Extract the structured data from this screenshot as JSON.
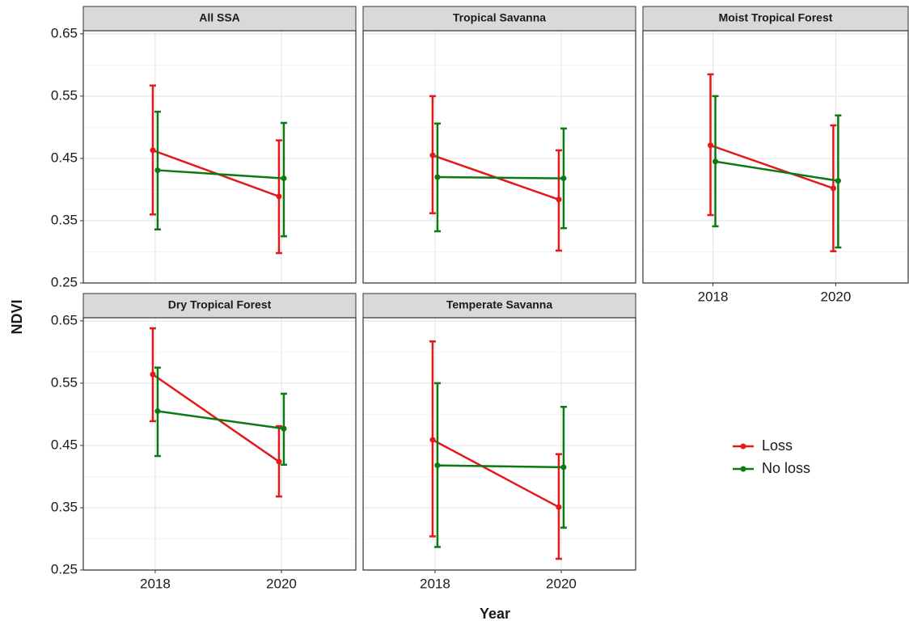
{
  "axis_labels": {
    "x": "Year",
    "y": "NDVI"
  },
  "chart_data": [
    {
      "type": "line",
      "title": "All SSA",
      "x": [
        2018,
        2020
      ],
      "xlim": [
        2016.86,
        2021.18
      ],
      "xticks": [
        2018,
        2020
      ],
      "ylim": [
        0.25,
        0.655
      ],
      "yticks": [
        0.25,
        0.35,
        0.45,
        0.55,
        0.65
      ],
      "minor_yticks": [
        0.3,
        0.4,
        0.5,
        0.6
      ],
      "grid": true,
      "series": [
        {
          "name": "Loss",
          "color": "#e31a1c",
          "values": [
            0.463,
            0.389
          ],
          "lower": [
            0.36,
            0.298
          ],
          "upper": [
            0.567,
            0.479
          ]
        },
        {
          "name": "No loss",
          "color": "#0b7a12",
          "values": [
            0.431,
            0.418
          ],
          "lower": [
            0.336,
            0.325
          ],
          "upper": [
            0.525,
            0.507
          ]
        }
      ]
    },
    {
      "type": "line",
      "title": "Tropical Savanna",
      "x": [
        2018,
        2020
      ],
      "xlim": [
        2016.86,
        2021.18
      ],
      "xticks": [
        2018,
        2020
      ],
      "ylim": [
        0.25,
        0.655
      ],
      "yticks": [
        0.25,
        0.35,
        0.45,
        0.55,
        0.65
      ],
      "minor_yticks": [
        0.3,
        0.4,
        0.5,
        0.6
      ],
      "grid": true,
      "series": [
        {
          "name": "Loss",
          "color": "#e31a1c",
          "values": [
            0.455,
            0.384
          ],
          "lower": [
            0.362,
            0.302
          ],
          "upper": [
            0.55,
            0.463
          ]
        },
        {
          "name": "No loss",
          "color": "#0b7a12",
          "values": [
            0.42,
            0.418
          ],
          "lower": [
            0.333,
            0.338
          ],
          "upper": [
            0.506,
            0.498
          ]
        }
      ]
    },
    {
      "type": "line",
      "title": "Moist Tropical Forest",
      "x": [
        2018,
        2020
      ],
      "xlim": [
        2016.86,
        2021.18
      ],
      "xticks": [
        2018,
        2020
      ],
      "ylim": [
        0.25,
        0.655
      ],
      "yticks": [
        0.25,
        0.35,
        0.45,
        0.55,
        0.65
      ],
      "minor_yticks": [
        0.3,
        0.4,
        0.5,
        0.6
      ],
      "grid": true,
      "series": [
        {
          "name": "Loss",
          "color": "#e31a1c",
          "values": [
            0.471,
            0.402
          ],
          "lower": [
            0.359,
            0.301
          ],
          "upper": [
            0.585,
            0.503
          ]
        },
        {
          "name": "No loss",
          "color": "#0b7a12",
          "values": [
            0.445,
            0.414
          ],
          "lower": [
            0.341,
            0.307
          ],
          "upper": [
            0.55,
            0.519
          ]
        }
      ]
    },
    {
      "type": "line",
      "title": "Dry Tropical Forest",
      "x": [
        2018,
        2020
      ],
      "xlim": [
        2016.86,
        2021.18
      ],
      "xticks": [
        2018,
        2020
      ],
      "ylim": [
        0.25,
        0.655
      ],
      "yticks": [
        0.25,
        0.35,
        0.45,
        0.55,
        0.65
      ],
      "minor_yticks": [
        0.3,
        0.4,
        0.5,
        0.6
      ],
      "grid": true,
      "series": [
        {
          "name": "Loss",
          "color": "#e31a1c",
          "values": [
            0.564,
            0.424
          ],
          "lower": [
            0.489,
            0.368
          ],
          "upper": [
            0.638,
            0.481
          ]
        },
        {
          "name": "No loss",
          "color": "#0b7a12",
          "values": [
            0.505,
            0.477
          ],
          "lower": [
            0.433,
            0.419
          ],
          "upper": [
            0.575,
            0.533
          ]
        }
      ]
    },
    {
      "type": "line",
      "title": "Temperate Savanna",
      "x": [
        2018,
        2020
      ],
      "xlim": [
        2016.86,
        2021.18
      ],
      "xticks": [
        2018,
        2020
      ],
      "ylim": [
        0.25,
        0.655
      ],
      "yticks": [
        0.25,
        0.35,
        0.45,
        0.55,
        0.65
      ],
      "minor_yticks": [
        0.3,
        0.4,
        0.5,
        0.6
      ],
      "grid": true,
      "series": [
        {
          "name": "Loss",
          "color": "#e31a1c",
          "values": [
            0.459,
            0.351
          ],
          "lower": [
            0.304,
            0.268
          ],
          "upper": [
            0.617,
            0.436
          ]
        },
        {
          "name": "No loss",
          "color": "#0b7a12",
          "values": [
            0.418,
            0.415
          ],
          "lower": [
            0.287,
            0.318
          ],
          "upper": [
            0.55,
            0.512
          ]
        }
      ]
    }
  ]
}
